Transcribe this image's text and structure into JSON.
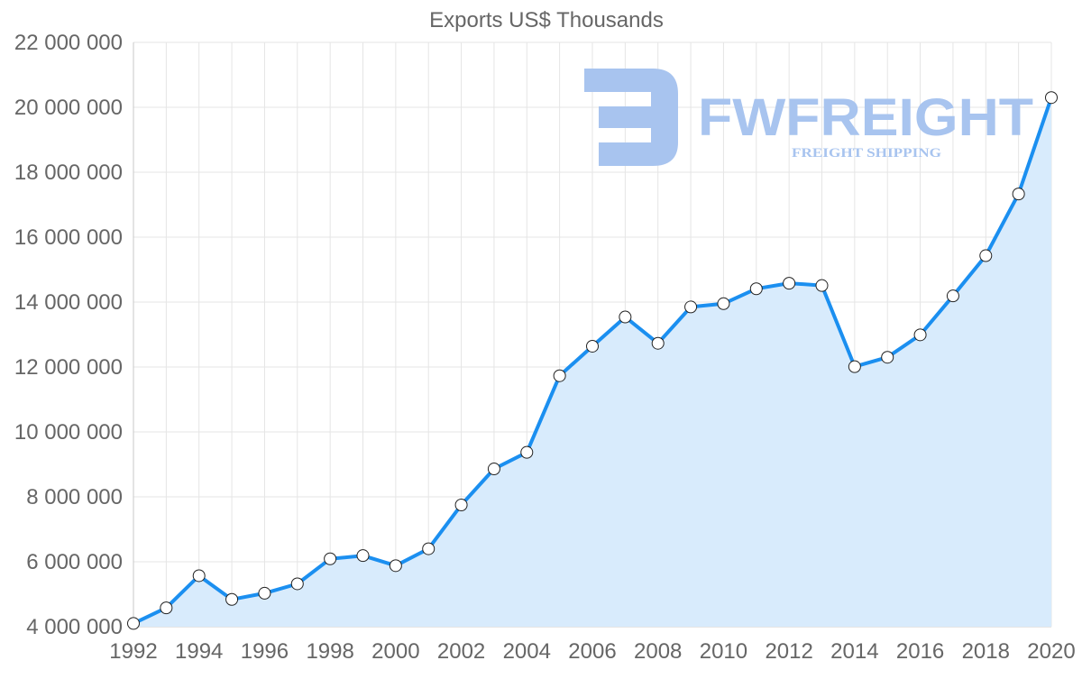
{
  "chart_data": {
    "type": "area",
    "title": "Exports US$ Thousands",
    "xlabel": "",
    "ylabel": "",
    "x": [
      1992,
      1993,
      1994,
      1995,
      1996,
      1997,
      1998,
      1999,
      2000,
      2001,
      2002,
      2003,
      2004,
      2005,
      2006,
      2007,
      2008,
      2009,
      2010,
      2011,
      2012,
      2013,
      2014,
      2015,
      2016,
      2017,
      2018,
      2019,
      2020
    ],
    "series": [
      {
        "name": "Exports US$ Thousands",
        "values": [
          4100000,
          4580000,
          5570000,
          4840000,
          5030000,
          5320000,
          6090000,
          6190000,
          5880000,
          6400000,
          7750000,
          8860000,
          9370000,
          11730000,
          12640000,
          13540000,
          12730000,
          13850000,
          13950000,
          14410000,
          14580000,
          14510000,
          12010000,
          12300000,
          12990000,
          14190000,
          15430000,
          17330000,
          20300000
        ],
        "color": "#1b8ff0",
        "fill": "#d8ebfc"
      }
    ],
    "xlim": [
      1992,
      2020
    ],
    "ylim": [
      4000000,
      22000000
    ],
    "yticks": [
      "4 000 000",
      "6 000 000",
      "8 000 000",
      "10 000 000",
      "12 000 000",
      "14 000 000",
      "16 000 000",
      "18 000 000",
      "20 000 000",
      "22 000 000"
    ],
    "ytick_values": [
      4000000,
      6000000,
      8000000,
      10000000,
      12000000,
      14000000,
      16000000,
      18000000,
      20000000,
      22000000
    ],
    "xticks": [
      "1992",
      "1994",
      "1996",
      "1998",
      "2000",
      "2002",
      "2004",
      "2006",
      "2008",
      "2010",
      "2012",
      "2014",
      "2016",
      "2018",
      "2020"
    ],
    "xtick_values": [
      1992,
      1994,
      1996,
      1998,
      2000,
      2002,
      2004,
      2006,
      2008,
      2010,
      2012,
      2014,
      2016,
      2018,
      2020
    ],
    "grid": true,
    "legend": "none"
  },
  "watermark": {
    "brand": "FWFREIGHT",
    "tagline": "FREIGHT SHIPPING",
    "color": "#a8c4ef"
  }
}
